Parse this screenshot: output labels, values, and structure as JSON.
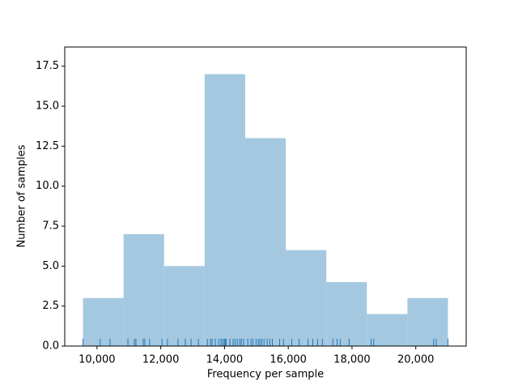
{
  "chart_data": {
    "type": "histogram",
    "xlabel": "Frequency per sample",
    "ylabel": "Number of samples",
    "bins": [
      9560,
      10832,
      12104,
      13377,
      14649,
      15921,
      17193,
      18466,
      19738,
      21010
    ],
    "values": [
      3,
      7,
      5,
      17,
      13,
      6,
      4,
      2,
      3
    ],
    "color": "#a5c8e1",
    "rug_color": "#1f77b4",
    "rug": [
      9560,
      10100,
      10410,
      10970,
      11170,
      11220,
      11450,
      11500,
      11650,
      12040,
      12210,
      12540,
      12770,
      12950,
      13180,
      13460,
      13560,
      13610,
      13710,
      13820,
      13890,
      13940,
      13990,
      14020,
      14050,
      14170,
      14270,
      14330,
      14400,
      14480,
      14530,
      14600,
      14730,
      14830,
      14890,
      14990,
      15060,
      15110,
      15170,
      15240,
      15340,
      15420,
      15500,
      15730,
      15850,
      16110,
      16340,
      16620,
      16770,
      16920,
      17070,
      17400,
      17530,
      17630,
      17910,
      18600,
      18680,
      20560,
      20640,
      21010
    ],
    "xlim": [
      8988,
      21582
    ],
    "xticks": [
      {
        "value": 10000,
        "label": "10,000"
      },
      {
        "value": 12000,
        "label": "12,000"
      },
      {
        "value": 14000,
        "label": "14,000"
      },
      {
        "value": 16000,
        "label": "16,000"
      },
      {
        "value": 18000,
        "label": "18,000"
      },
      {
        "value": 20000,
        "label": "20,000"
      }
    ],
    "ylim": [
      0,
      18.7
    ],
    "yticks": [
      {
        "value": 0,
        "label": "0.0"
      },
      2.5,
      {
        "value": 5,
        "label": "5.0"
      },
      7.5,
      {
        "value": 10,
        "label": "10.0"
      },
      12.5,
      {
        "value": 15,
        "label": "15.0"
      },
      17.5
    ]
  }
}
